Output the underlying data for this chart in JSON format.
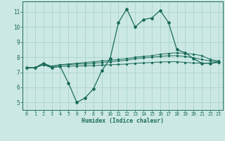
{
  "xlabel": "Humidex (Indice chaleur)",
  "bg_color": "#cce8e4",
  "grid_color": "#aad4cc",
  "line_color": "#1a6b5a",
  "x_ticks": [
    0,
    1,
    2,
    3,
    4,
    5,
    6,
    7,
    8,
    9,
    10,
    11,
    12,
    13,
    14,
    15,
    16,
    17,
    18,
    19,
    20,
    21,
    22,
    23
  ],
  "y_ticks": [
    5,
    6,
    7,
    8,
    9,
    10,
    11
  ],
  "xlim": [
    -0.5,
    23.5
  ],
  "ylim": [
    4.5,
    11.7
  ],
  "series": [
    [
      7.3,
      7.3,
      7.6,
      7.3,
      7.4,
      6.3,
      5.0,
      5.3,
      5.9,
      7.1,
      7.9,
      10.3,
      11.2,
      10.0,
      10.5,
      10.6,
      11.1,
      10.3,
      8.5,
      8.3,
      7.9,
      7.6,
      7.6,
      7.7
    ],
    [
      7.3,
      7.3,
      7.6,
      7.4,
      7.5,
      7.55,
      7.6,
      7.65,
      7.7,
      7.75,
      7.8,
      7.85,
      7.9,
      8.0,
      8.05,
      8.1,
      8.2,
      8.25,
      8.3,
      8.25,
      8.2,
      8.1,
      7.85,
      7.75
    ],
    [
      7.3,
      7.3,
      7.5,
      7.4,
      7.5,
      7.5,
      7.55,
      7.55,
      7.6,
      7.65,
      7.7,
      7.75,
      7.8,
      7.9,
      7.95,
      8.0,
      8.05,
      8.1,
      8.1,
      8.05,
      7.95,
      7.85,
      7.75,
      7.7
    ],
    [
      7.3,
      7.3,
      7.5,
      7.3,
      7.4,
      7.4,
      7.42,
      7.43,
      7.45,
      7.47,
      7.5,
      7.52,
      7.55,
      7.6,
      7.62,
      7.65,
      7.68,
      7.7,
      7.7,
      7.65,
      7.62,
      7.6,
      7.6,
      7.65
    ]
  ]
}
